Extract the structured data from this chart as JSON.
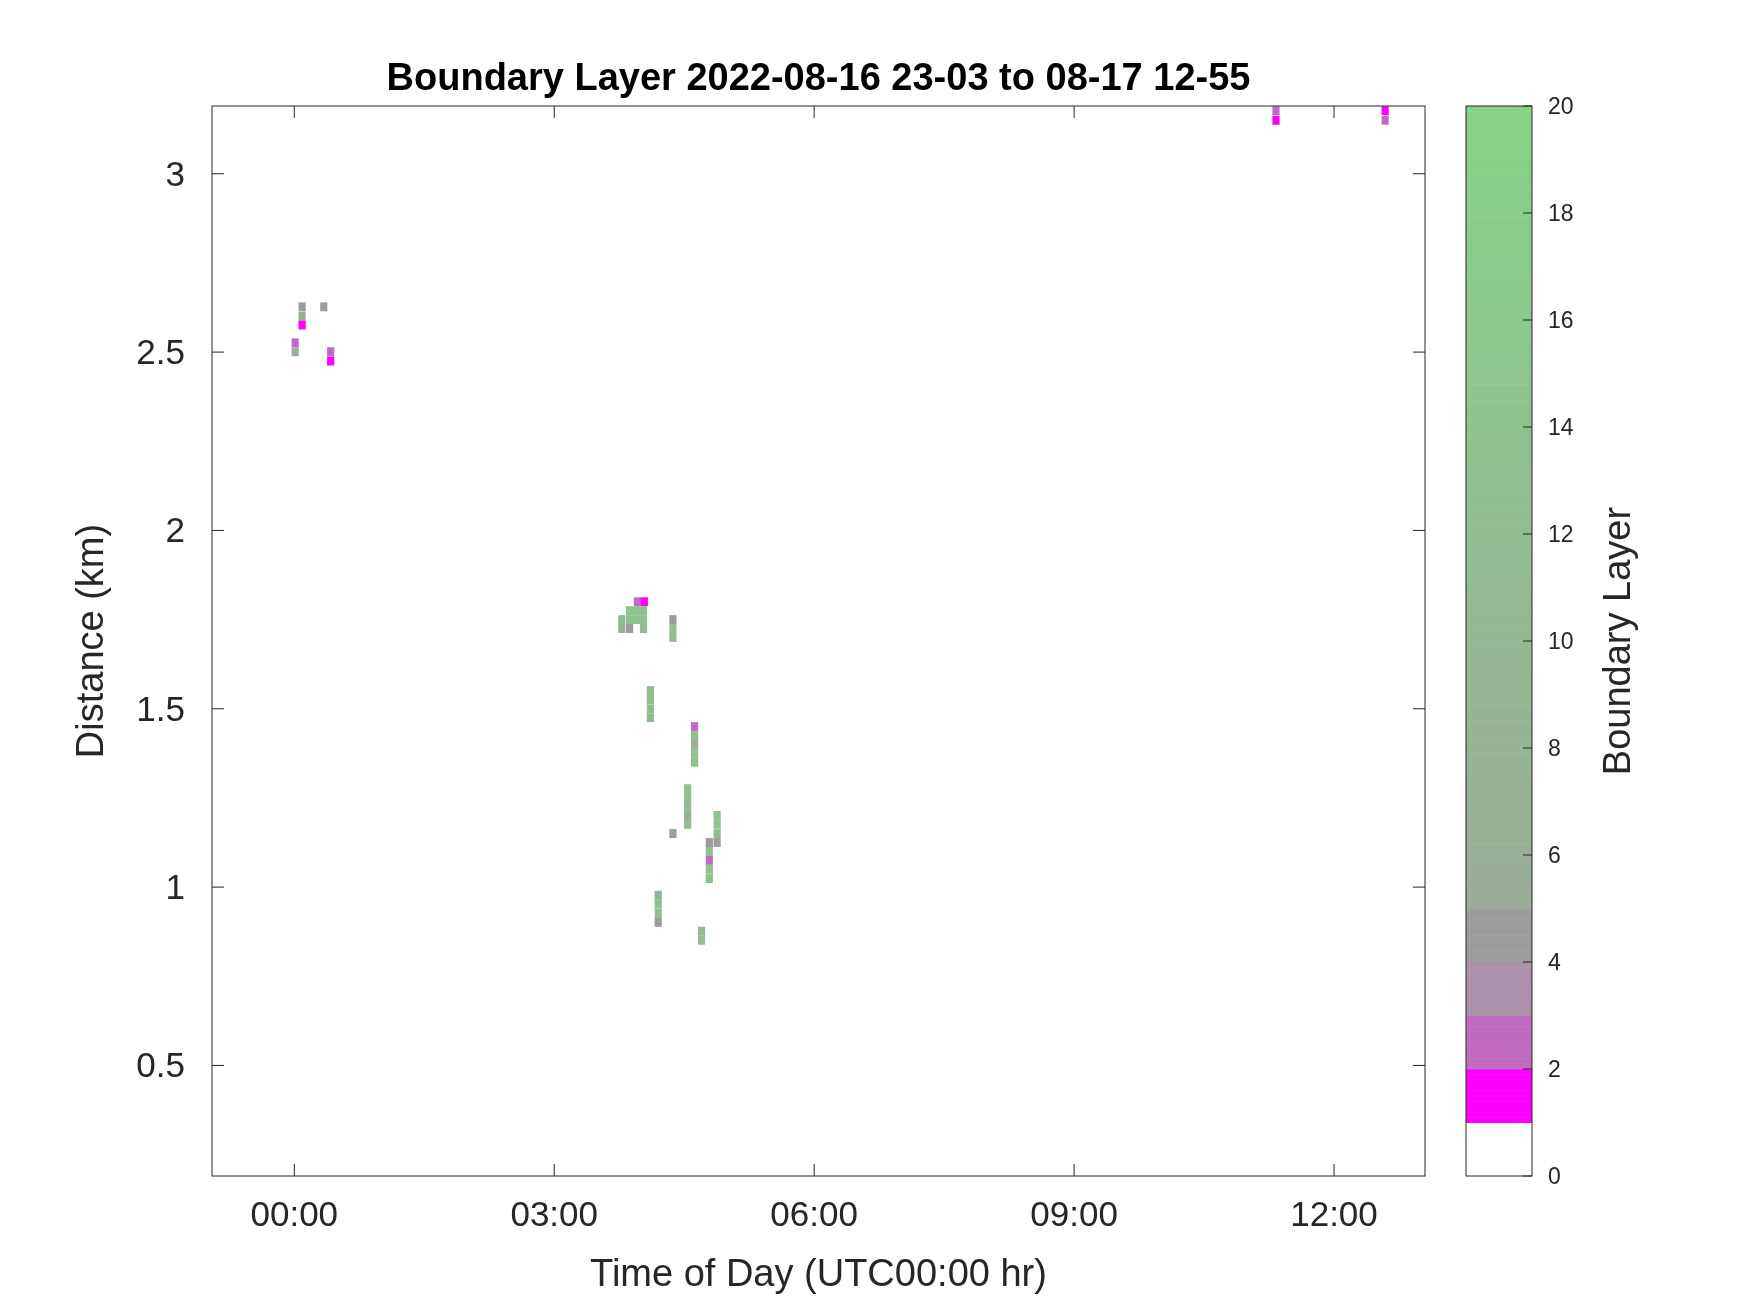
{
  "chart_data": {
    "type": "scatter",
    "title": "Boundary Layer 2022-08-16 23-03 to 08-17 12-55",
    "xlabel": "Time of Day (UTC00:00 hr)",
    "ylabel": "Distance (km)",
    "clabel": "Boundary Layer",
    "marker": "square",
    "xlim": [
      -0.95,
      13.05
    ],
    "xticks": [
      {
        "value": 0,
        "label": "00:00"
      },
      {
        "value": 3,
        "label": "03:00"
      },
      {
        "value": 6,
        "label": "06:00"
      },
      {
        "value": 9,
        "label": "09:00"
      },
      {
        "value": 12,
        "label": "12:00"
      }
    ],
    "ylim": [
      0.19,
      3.19
    ],
    "yticks": [
      0.5,
      1,
      1.5,
      2,
      2.5,
      3
    ],
    "clim": [
      0,
      20
    ],
    "cticks": [
      0,
      2,
      4,
      6,
      8,
      10,
      12,
      14,
      16,
      18,
      20
    ],
    "x": [
      0.09,
      0.09,
      0.09,
      0.34,
      0.01,
      0.01,
      0.42,
      0.42,
      3.96,
      4.04,
      3.87,
      3.95,
      4.03,
      3.78,
      3.87,
      3.95,
      4.03,
      3.78,
      3.87,
      4.03,
      4.37,
      4.37,
      4.37,
      4.11,
      4.11,
      4.11,
      4.11,
      4.62,
      4.62,
      4.62,
      4.62,
      4.62,
      4.54,
      4.54,
      4.54,
      4.54,
      4.54,
      4.37,
      4.88,
      4.88,
      4.88,
      4.88,
      4.79,
      4.79,
      4.79,
      4.79,
      4.79,
      4.2,
      4.2,
      4.2,
      4.2,
      4.7,
      4.7,
      11.33,
      11.33,
      12.59,
      12.59
    ],
    "values": [
      2.627,
      2.601,
      2.576,
      2.627,
      2.526,
      2.501,
      2.501,
      2.475,
      1.8,
      1.8,
      1.775,
      1.775,
      1.775,
      1.75,
      1.75,
      1.75,
      1.75,
      1.725,
      1.725,
      1.725,
      1.75,
      1.725,
      1.7,
      1.551,
      1.526,
      1.5,
      1.475,
      1.45,
      1.425,
      1.4,
      1.375,
      1.35,
      1.276,
      1.251,
      1.226,
      1.201,
      1.176,
      1.15,
      1.201,
      1.176,
      1.15,
      1.125,
      1.125,
      1.1,
      1.075,
      1.05,
      1.024,
      0.977,
      0.952,
      0.926,
      0.901,
      0.876,
      0.851,
      3.177,
      3.15,
      3.177,
      3.15
    ],
    "cvalues": [
      5,
      7,
      1.5,
      5,
      3,
      6,
      3,
      1.5,
      3,
      1.5,
      14,
      14,
      14,
      12,
      14,
      14,
      14,
      8,
      5,
      10,
      5,
      12,
      12,
      12,
      12,
      12,
      10,
      3,
      12,
      6,
      14,
      14,
      13,
      12,
      12,
      6,
      12,
      5,
      14,
      14,
      12,
      5,
      5,
      12,
      3,
      14,
      14,
      7,
      13,
      13,
      5,
      10,
      13,
      3,
      1.5,
      1.5,
      3
    ]
  }
}
